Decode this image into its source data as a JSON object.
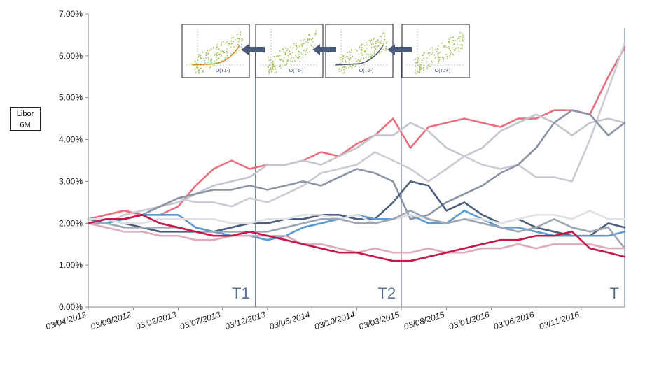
{
  "chart_data": {
    "type": "line",
    "ylabel": "Libor\n6M",
    "ylabel_line1": "Libor",
    "ylabel_line2": "6M",
    "ylim": [
      0,
      0.07
    ],
    "yticks": [
      "0.00%",
      "1.00%",
      "2.00%",
      "3.00%",
      "4.00%",
      "5.00%",
      "6.00%",
      "7.00%"
    ],
    "x_range": [
      "2012-04-03",
      "2017-03-31"
    ],
    "xticks": [
      {
        "date": "2012-04-03",
        "label": "03/04/2012"
      },
      {
        "date": "2012-09-03",
        "label": "03/09/2012"
      },
      {
        "date": "2013-02-03",
        "label": "03/02/2013"
      },
      {
        "date": "2013-07-03",
        "label": "03/07/2013"
      },
      {
        "date": "2013-12-03",
        "label": "03/12/2013"
      },
      {
        "date": "2014-05-03",
        "label": "03/05/2014"
      },
      {
        "date": "2014-10-03",
        "label": "03/10/2014"
      },
      {
        "date": "2015-03-03",
        "label": "03/03/2015"
      },
      {
        "date": "2015-08-03",
        "label": "03/08/2015"
      },
      {
        "date": "2016-01-03",
        "label": "03/01/2016"
      },
      {
        "date": "2016-06-03",
        "label": "03/06/2016"
      },
      {
        "date": "2016-11-03",
        "label": "03/11/2016"
      }
    ],
    "grid": false,
    "legend": "none",
    "markers": [
      {
        "label": "T1",
        "date": "2013-10-23"
      },
      {
        "label": "T2",
        "date": "2015-03-03"
      },
      {
        "label": "T",
        "date": "2017-03-31"
      }
    ],
    "insets": [
      {
        "label": "O(T1-)",
        "fit": "orange"
      },
      {
        "label": "O(T1-)",
        "fit": "none"
      },
      {
        "label": "O(T2-)",
        "fit": "dark"
      },
      {
        "label": "O(T2+)",
        "fit": "none"
      }
    ],
    "x": [
      "2012-04-03",
      "2012-06-03",
      "2012-08-03",
      "2012-10-03",
      "2012-12-03",
      "2013-02-03",
      "2013-04-03",
      "2013-06-03",
      "2013-08-03",
      "2013-10-03",
      "2013-12-03",
      "2014-02-03",
      "2014-04-03",
      "2014-06-03",
      "2014-08-03",
      "2014-10-03",
      "2014-12-03",
      "2015-02-03",
      "2015-04-03",
      "2015-06-03",
      "2015-08-03",
      "2015-10-03",
      "2015-12-03",
      "2016-02-03",
      "2016-04-03",
      "2016-06-03",
      "2016-08-03",
      "2016-10-03",
      "2016-12-03",
      "2017-02-03",
      "2017-03-31"
    ],
    "series": [
      {
        "color": "#e8707e",
        "width": 2.6,
        "values": [
          0.021,
          0.022,
          0.023,
          0.022,
          0.022,
          0.024,
          0.029,
          0.033,
          0.035,
          0.033,
          0.034,
          0.034,
          0.035,
          0.037,
          0.036,
          0.039,
          0.041,
          0.045,
          0.038,
          0.043,
          0.044,
          0.045,
          0.044,
          0.043,
          0.045,
          0.045,
          0.047,
          0.047,
          0.046,
          0.055,
          0.062
        ]
      },
      {
        "color": "#c2c6ce",
        "width": 2.6,
        "values": [
          0.02,
          0.021,
          0.021,
          0.022,
          0.024,
          0.025,
          0.027,
          0.029,
          0.03,
          0.031,
          0.034,
          0.034,
          0.035,
          0.034,
          0.036,
          0.038,
          0.041,
          0.041,
          0.044,
          0.042,
          0.038,
          0.036,
          0.038,
          0.042,
          0.044,
          0.046,
          0.044,
          0.041,
          0.044,
          0.045,
          0.044
        ]
      },
      {
        "color": "#c9ccd2",
        "width": 2.6,
        "values": [
          0.021,
          0.02,
          0.022,
          0.023,
          0.024,
          0.026,
          0.025,
          0.025,
          0.024,
          0.026,
          0.025,
          0.027,
          0.029,
          0.032,
          0.033,
          0.034,
          0.037,
          0.035,
          0.033,
          0.03,
          0.033,
          0.036,
          0.034,
          0.033,
          0.034,
          0.031,
          0.031,
          0.03,
          0.04,
          0.052,
          0.063
        ]
      },
      {
        "color": "#8a94a6",
        "width": 2.6,
        "values": [
          0.02,
          0.02,
          0.021,
          0.022,
          0.024,
          0.026,
          0.027,
          0.028,
          0.028,
          0.029,
          0.028,
          0.029,
          0.03,
          0.029,
          0.031,
          0.033,
          0.032,
          0.03,
          0.021,
          0.022,
          0.025,
          0.027,
          0.029,
          0.032,
          0.034,
          0.038,
          0.044,
          0.047,
          0.046,
          0.041,
          0.044
        ]
      },
      {
        "color": "#4d5f7c",
        "width": 2.6,
        "values": [
          0.02,
          0.021,
          0.02,
          0.019,
          0.018,
          0.018,
          0.018,
          0.018,
          0.019,
          0.02,
          0.02,
          0.021,
          0.021,
          0.022,
          0.022,
          0.021,
          0.021,
          0.025,
          0.03,
          0.029,
          0.023,
          0.025,
          0.022,
          0.02,
          0.021,
          0.019,
          0.018,
          0.017,
          0.017,
          0.02,
          0.019
        ]
      },
      {
        "color": "#5b9bd5",
        "width": 2.6,
        "values": [
          0.021,
          0.02,
          0.021,
          0.022,
          0.022,
          0.022,
          0.019,
          0.018,
          0.017,
          0.017,
          0.016,
          0.017,
          0.019,
          0.02,
          0.021,
          0.022,
          0.021,
          0.021,
          0.022,
          0.02,
          0.02,
          0.023,
          0.021,
          0.019,
          0.019,
          0.018,
          0.017,
          0.017,
          0.017,
          0.017,
          0.018
        ]
      },
      {
        "color": "#dfe1e6",
        "width": 2.6,
        "values": [
          0.021,
          0.021,
          0.02,
          0.02,
          0.021,
          0.021,
          0.021,
          0.021,
          0.02,
          0.02,
          0.021,
          0.021,
          0.022,
          0.022,
          0.021,
          0.022,
          0.02,
          0.021,
          0.022,
          0.021,
          0.02,
          0.021,
          0.021,
          0.02,
          0.021,
          0.022,
          0.022,
          0.021,
          0.023,
          0.021,
          0.021
        ]
      },
      {
        "color": "#9ea5b3",
        "width": 2.6,
        "values": [
          0.02,
          0.02,
          0.019,
          0.019,
          0.019,
          0.019,
          0.018,
          0.018,
          0.018,
          0.018,
          0.018,
          0.019,
          0.02,
          0.021,
          0.021,
          0.02,
          0.02,
          0.021,
          0.023,
          0.021,
          0.02,
          0.021,
          0.02,
          0.019,
          0.018,
          0.019,
          0.021,
          0.019,
          0.018,
          0.019,
          0.014
        ]
      },
      {
        "color": "#dbaeb8",
        "width": 2.6,
        "values": [
          0.02,
          0.019,
          0.018,
          0.018,
          0.017,
          0.017,
          0.016,
          0.016,
          0.017,
          0.017,
          0.017,
          0.017,
          0.015,
          0.015,
          0.014,
          0.013,
          0.014,
          0.013,
          0.013,
          0.014,
          0.013,
          0.013,
          0.014,
          0.014,
          0.015,
          0.014,
          0.015,
          0.015,
          0.015,
          0.014,
          0.014
        ]
      },
      {
        "color": "#c8174a",
        "width": 2.6,
        "values": [
          0.02,
          0.021,
          0.021,
          0.022,
          0.02,
          0.019,
          0.018,
          0.017,
          0.017,
          0.018,
          0.017,
          0.016,
          0.015,
          0.014,
          0.013,
          0.013,
          0.012,
          0.011,
          0.011,
          0.012,
          0.013,
          0.014,
          0.015,
          0.016,
          0.016,
          0.017,
          0.017,
          0.018,
          0.014,
          0.013,
          0.012
        ]
      }
    ]
  }
}
